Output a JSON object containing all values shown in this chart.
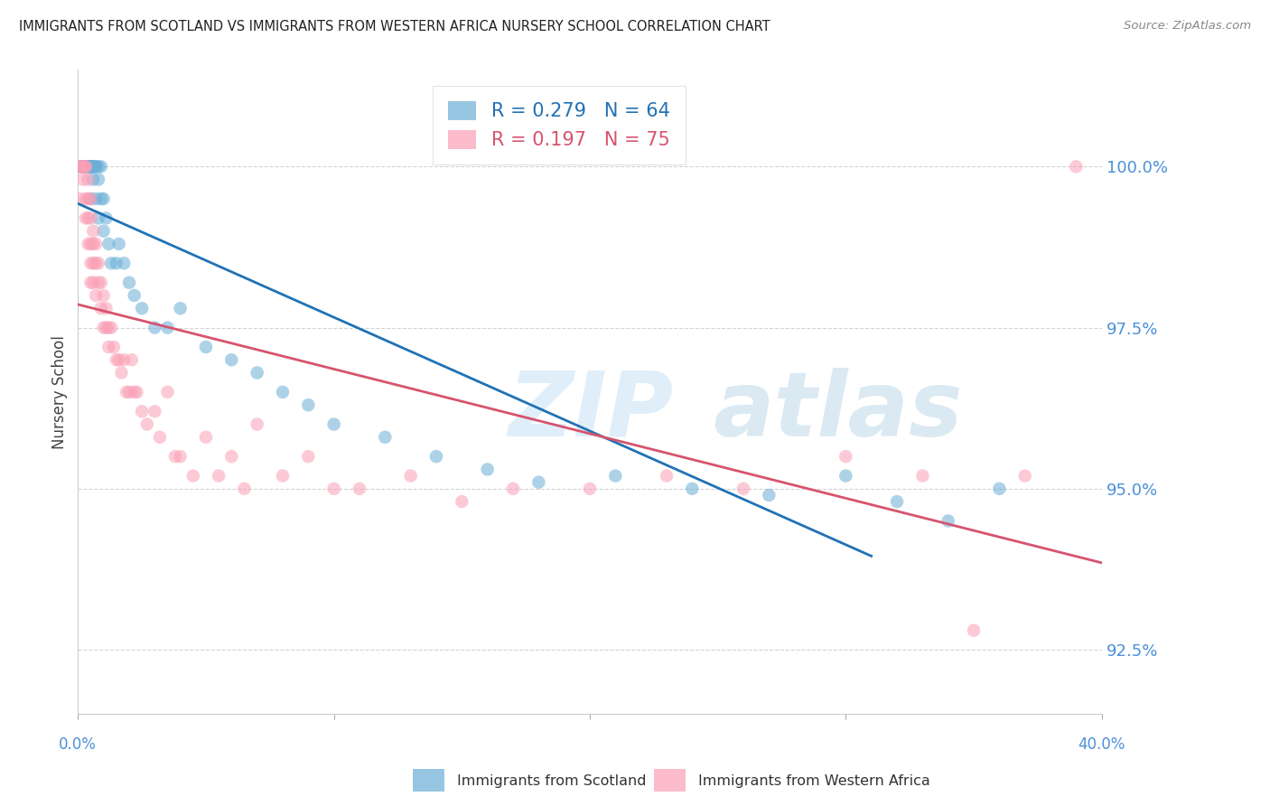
{
  "title": "IMMIGRANTS FROM SCOTLAND VS IMMIGRANTS FROM WESTERN AFRICA NURSERY SCHOOL CORRELATION CHART",
  "source": "Source: ZipAtlas.com",
  "ylabel": "Nursery School",
  "yticks": [
    92.5,
    95.0,
    97.5,
    100.0
  ],
  "xlim": [
    0.0,
    0.4
  ],
  "ylim": [
    91.5,
    101.5
  ],
  "scotland_R": 0.279,
  "scotland_N": 64,
  "western_africa_R": 0.197,
  "western_africa_N": 75,
  "scotland_color": "#6baed6",
  "western_africa_color": "#fa9fb5",
  "scotland_line_color": "#2171b5",
  "western_africa_line_color": "#d6546e",
  "background_color": "#ffffff",
  "grid_color": "#c8c8c8",
  "title_color": "#222222",
  "axis_label_color": "#4a90d9",
  "scotland_points_x": [
    0.001,
    0.001,
    0.002,
    0.002,
    0.002,
    0.003,
    0.003,
    0.003,
    0.003,
    0.003,
    0.004,
    0.004,
    0.004,
    0.004,
    0.004,
    0.004,
    0.005,
    0.005,
    0.005,
    0.005,
    0.005,
    0.006,
    0.006,
    0.006,
    0.006,
    0.007,
    0.007,
    0.007,
    0.008,
    0.008,
    0.008,
    0.009,
    0.009,
    0.01,
    0.01,
    0.011,
    0.012,
    0.013,
    0.015,
    0.016,
    0.018,
    0.02,
    0.022,
    0.025,
    0.03,
    0.035,
    0.04,
    0.05,
    0.06,
    0.07,
    0.08,
    0.09,
    0.1,
    0.12,
    0.14,
    0.16,
    0.18,
    0.21,
    0.24,
    0.27,
    0.3,
    0.32,
    0.34,
    0.36
  ],
  "scotland_points_y": [
    100.0,
    100.0,
    100.0,
    100.0,
    100.0,
    100.0,
    100.0,
    100.0,
    100.0,
    100.0,
    100.0,
    100.0,
    100.0,
    100.0,
    100.0,
    100.0,
    100.0,
    100.0,
    100.0,
    100.0,
    99.5,
    100.0,
    100.0,
    100.0,
    99.8,
    100.0,
    100.0,
    99.5,
    100.0,
    99.8,
    99.2,
    100.0,
    99.5,
    99.5,
    99.0,
    99.2,
    98.8,
    98.5,
    98.5,
    98.8,
    98.5,
    98.2,
    98.0,
    97.8,
    97.5,
    97.5,
    97.8,
    97.2,
    97.0,
    96.8,
    96.5,
    96.3,
    96.0,
    95.8,
    95.5,
    95.3,
    95.1,
    95.2,
    95.0,
    94.9,
    95.2,
    94.8,
    94.5,
    95.0
  ],
  "western_africa_points_x": [
    0.001,
    0.001,
    0.001,
    0.002,
    0.002,
    0.002,
    0.003,
    0.003,
    0.003,
    0.003,
    0.004,
    0.004,
    0.004,
    0.004,
    0.005,
    0.005,
    0.005,
    0.005,
    0.005,
    0.006,
    0.006,
    0.006,
    0.006,
    0.007,
    0.007,
    0.007,
    0.008,
    0.008,
    0.009,
    0.009,
    0.01,
    0.01,
    0.011,
    0.011,
    0.012,
    0.012,
    0.013,
    0.014,
    0.015,
    0.016,
    0.017,
    0.018,
    0.019,
    0.02,
    0.021,
    0.022,
    0.023,
    0.025,
    0.027,
    0.03,
    0.032,
    0.035,
    0.038,
    0.04,
    0.045,
    0.05,
    0.055,
    0.06,
    0.065,
    0.07,
    0.08,
    0.09,
    0.1,
    0.11,
    0.13,
    0.15,
    0.17,
    0.2,
    0.23,
    0.26,
    0.3,
    0.33,
    0.35,
    0.37,
    0.39
  ],
  "western_africa_points_y": [
    100.0,
    100.0,
    99.5,
    100.0,
    100.0,
    99.8,
    100.0,
    100.0,
    99.5,
    99.2,
    99.8,
    99.5,
    99.2,
    98.8,
    99.5,
    99.2,
    98.8,
    98.5,
    98.2,
    99.0,
    98.8,
    98.5,
    98.2,
    98.8,
    98.5,
    98.0,
    98.5,
    98.2,
    98.2,
    97.8,
    98.0,
    97.5,
    97.8,
    97.5,
    97.5,
    97.2,
    97.5,
    97.2,
    97.0,
    97.0,
    96.8,
    97.0,
    96.5,
    96.5,
    97.0,
    96.5,
    96.5,
    96.2,
    96.0,
    96.2,
    95.8,
    96.5,
    95.5,
    95.5,
    95.2,
    95.8,
    95.2,
    95.5,
    95.0,
    96.0,
    95.2,
    95.5,
    95.0,
    95.0,
    95.2,
    94.8,
    95.0,
    95.0,
    95.2,
    95.0,
    95.5,
    95.2,
    92.8,
    95.2,
    100.0
  ]
}
